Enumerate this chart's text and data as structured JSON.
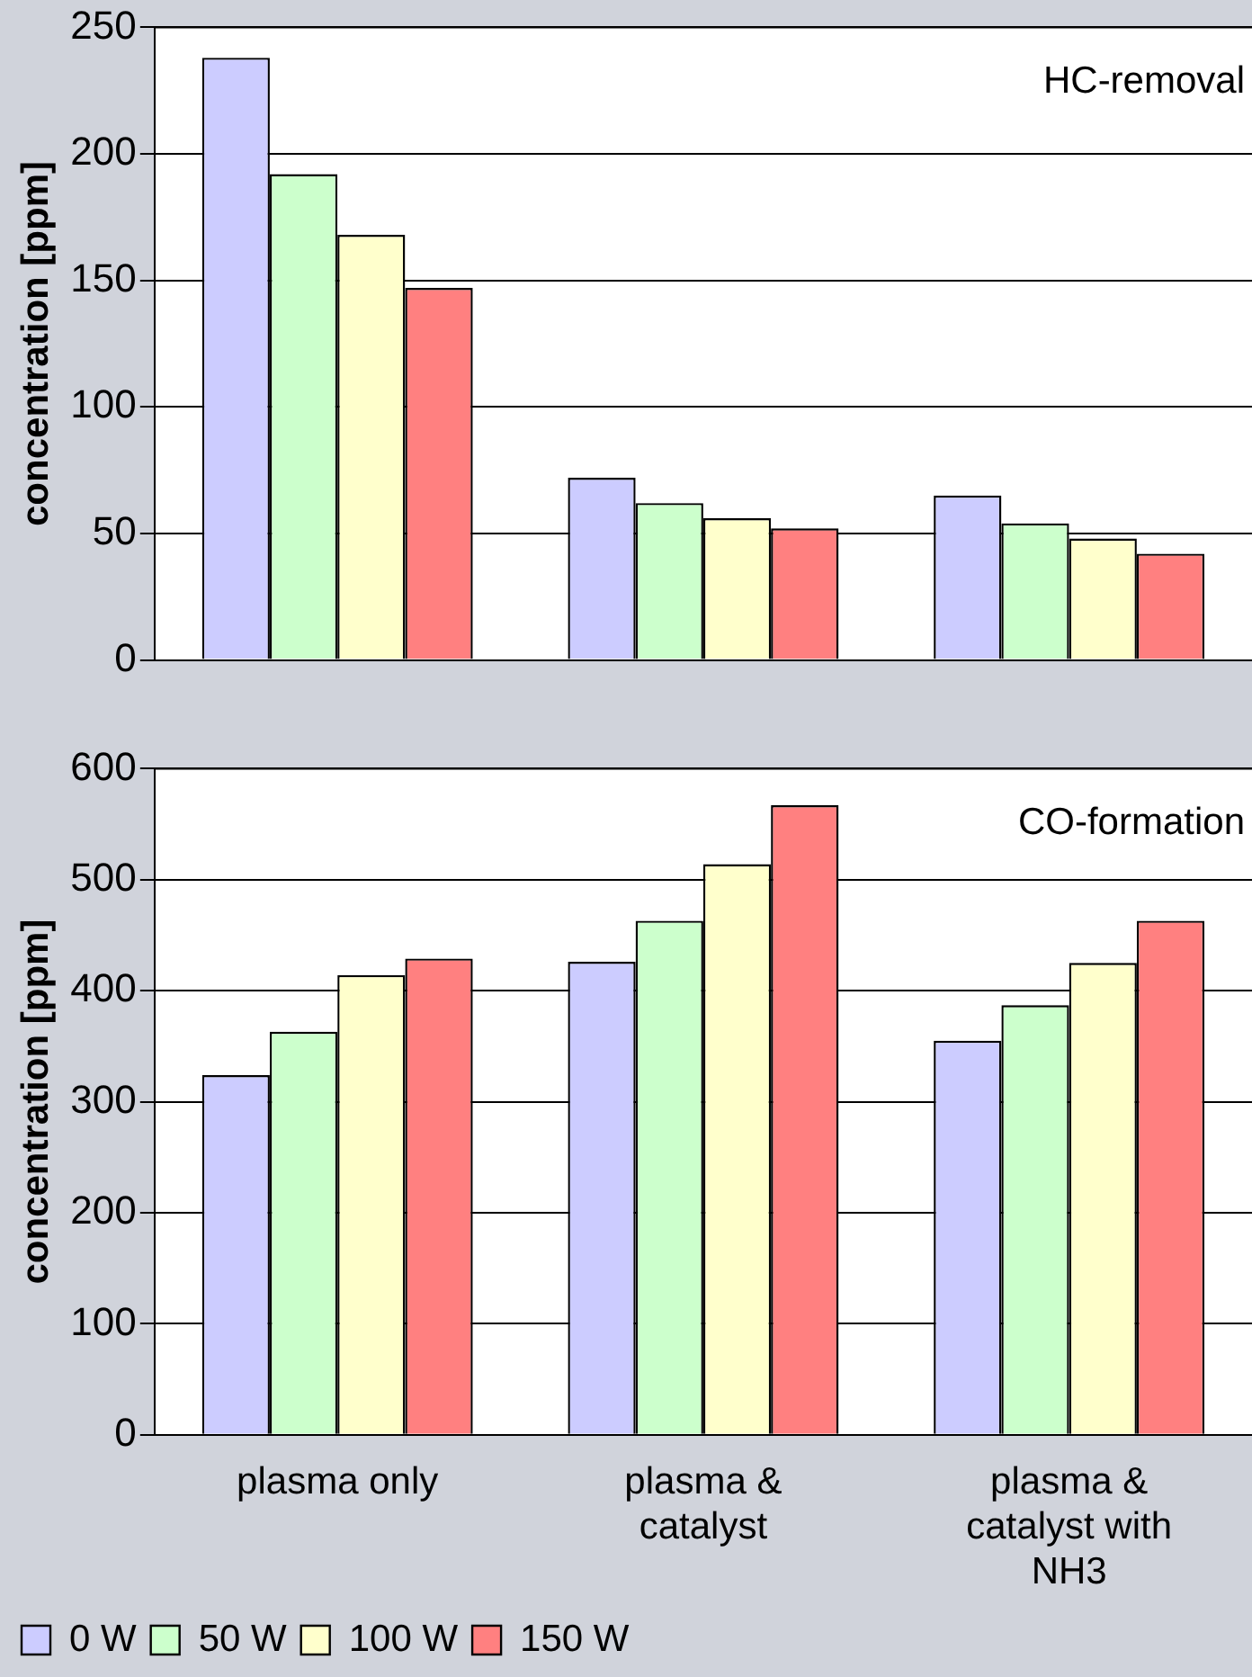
{
  "chart_data": [
    {
      "type": "bar",
      "ylabel": "concentration [ppm]",
      "categories": [
        null,
        null,
        null
      ],
      "series": [
        {
          "color": "#ccccff",
          "values": [
            238,
            72,
            65
          ]
        },
        {
          "color": "#ccffcc",
          "values": [
            192,
            62,
            54
          ]
        },
        {
          "color": "#ffffcc",
          "values": [
            168,
            56,
            48
          ]
        },
        {
          "color": "#ff8080",
          "values": [
            147,
            52,
            42
          ]
        }
      ],
      "ylim": [
        0,
        250
      ],
      "yticks": [
        0,
        50,
        100,
        150,
        200,
        250
      ],
      "grid": "y",
      "legend": false,
      "annotations": [
        "HC-removal"
      ]
    },
    {
      "type": "bar",
      "ylabel": "concentration [ppm]",
      "categories": [
        "plasma only",
        "plasma & catalyst",
        "plasma & catalyst with NH3"
      ],
      "series": [
        {
          "name": "0 W",
          "color": "#ccccff",
          "values": [
            324,
            426,
            355
          ]
        },
        {
          "name": "50 W",
          "color": "#ccffcc",
          "values": [
            363,
            463,
            387
          ]
        },
        {
          "name": "100 W",
          "color": "#ffffcc",
          "values": [
            414,
            514,
            425
          ]
        },
        {
          "name": "150 W",
          "color": "#ff8080",
          "values": [
            429,
            567,
            463
          ]
        }
      ],
      "ylim": [
        0,
        600
      ],
      "yticks": [
        0,
        100,
        200,
        300,
        400,
        500,
        600
      ],
      "grid": "y",
      "legend": "bottom left",
      "annotations": [
        "CO-formation"
      ]
    }
  ]
}
